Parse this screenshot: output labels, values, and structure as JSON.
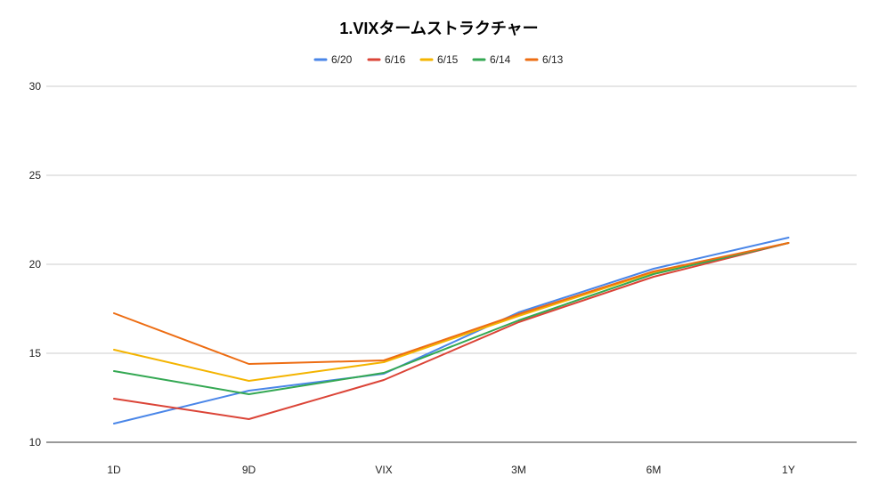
{
  "chart_data": {
    "type": "line",
    "title": "1.VIXタームストラクチャー",
    "categories": [
      "1D",
      "9D",
      "VIX",
      "3M",
      "6M",
      "1Y"
    ],
    "ylim": [
      10,
      30
    ],
    "yticks": [
      10,
      15,
      20,
      25,
      30
    ],
    "grid": true,
    "legend_position": "top-center",
    "series": [
      {
        "name": "6/20",
        "color": "#4a86e8",
        "values": [
          11.05,
          12.9,
          13.85,
          17.3,
          19.75,
          21.5
        ]
      },
      {
        "name": "6/16",
        "color": "#db4437",
        "values": [
          12.45,
          11.3,
          13.5,
          16.75,
          19.3,
          21.2
        ]
      },
      {
        "name": "6/15",
        "color": "#f4b400",
        "values": [
          15.2,
          13.45,
          14.5,
          17.1,
          19.55,
          21.2
        ]
      },
      {
        "name": "6/14",
        "color": "#34a853",
        "values": [
          14.0,
          12.7,
          13.9,
          16.85,
          19.45,
          21.2
        ]
      },
      {
        "name": "6/13",
        "color": "#ed6d13",
        "values": [
          17.25,
          14.4,
          14.6,
          17.2,
          19.6,
          21.2
        ]
      }
    ]
  }
}
